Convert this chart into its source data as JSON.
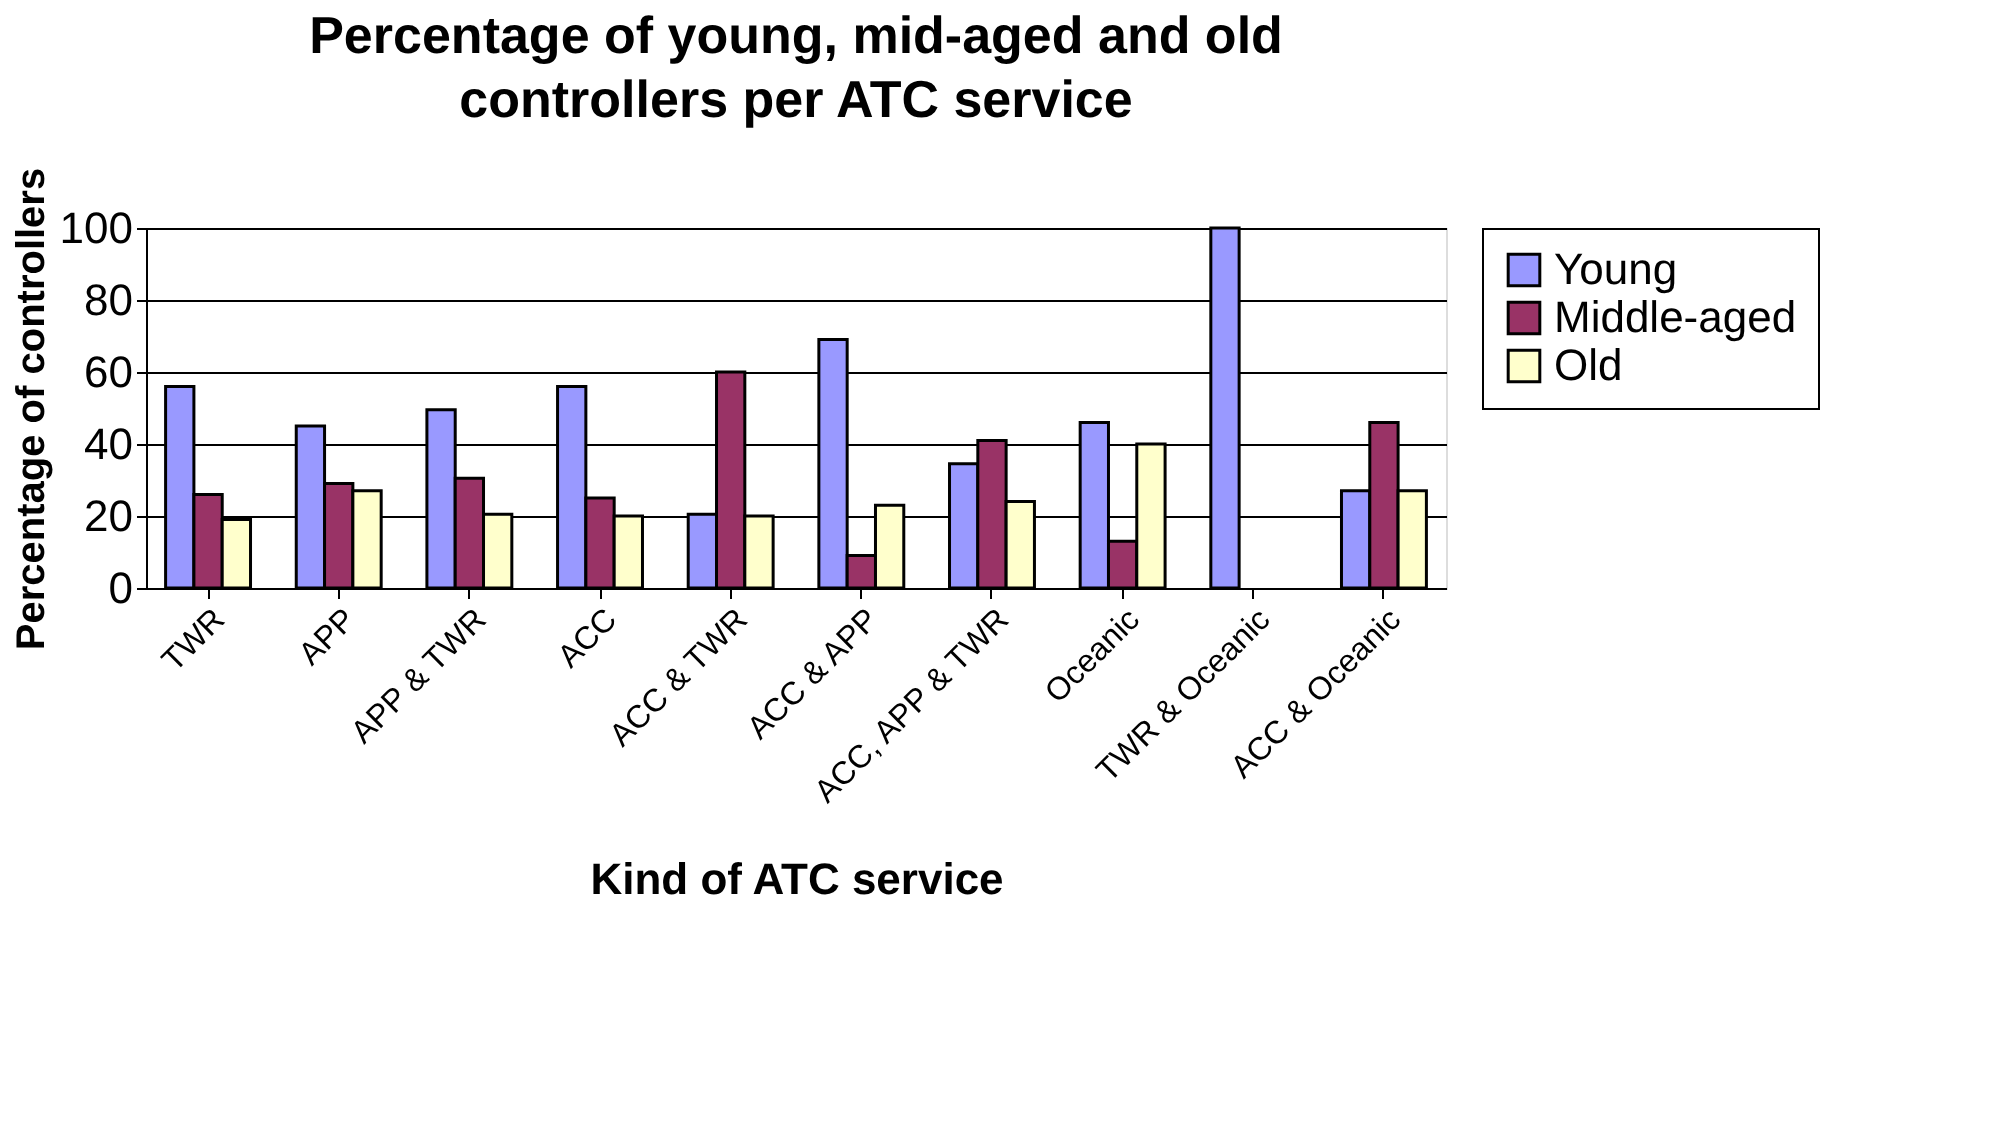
{
  "chart_data": {
    "type": "bar",
    "title": "Percentage of young, mid-aged and old controllers per ATC service",
    "xlabel": "Kind of ATC service",
    "ylabel": "Percentage of controllers",
    "categories": [
      "TWR",
      "APP",
      "APP & TWR",
      "ACC",
      "ACC & TWR",
      "ACC & APP",
      "ACC, APP & TWR",
      "Oceanic",
      "TWR & Oceanic",
      "ACC & Oceanic"
    ],
    "series": [
      {
        "name": "Young",
        "color": "#9999ff",
        "values": [
          56,
          45,
          49.5,
          56,
          20.5,
          69,
          34.5,
          46,
          100,
          27
        ]
      },
      {
        "name": "Middle-aged",
        "color": "#993366",
        "values": [
          26,
          29,
          30.5,
          25,
          60,
          9,
          41,
          13,
          null,
          46
        ]
      },
      {
        "name": "Old",
        "color": "#ffffcc",
        "values": [
          19,
          27,
          20.5,
          20,
          20,
          23,
          24,
          40,
          null,
          27
        ]
      }
    ],
    "ylim": [
      0,
      100
    ],
    "yticks": [
      0,
      20,
      40,
      60,
      80,
      100
    ],
    "grid": "y",
    "legend": "right"
  }
}
